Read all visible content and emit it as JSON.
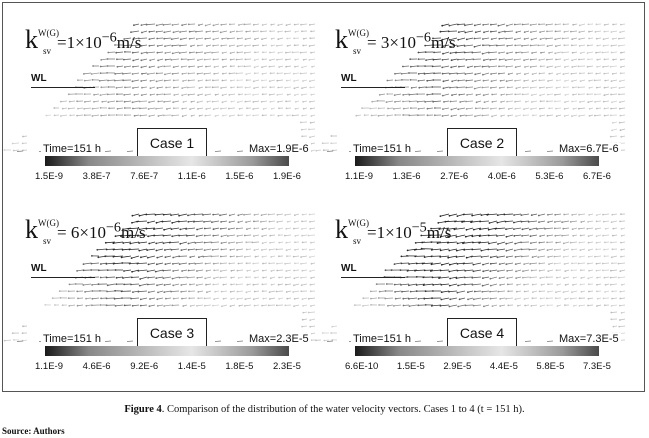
{
  "panels": [
    {
      "k_letter": "k",
      "k_sup": "W(G)",
      "k_sub": "sv",
      "k_value": "=1×10",
      "k_exp": "−6",
      "k_unit": "m/s",
      "wl": "WL",
      "time": "Time=151 h",
      "case": "Case 1",
      "max": "Max=1.9E-6",
      "ticks": [
        "1.5E-9",
        "3.8E-7",
        "7.6E-7",
        "1.1E-6",
        "1.5E-6",
        "1.9E-6"
      ],
      "density": 0.35
    },
    {
      "k_letter": "k",
      "k_sup": "W(G)",
      "k_sub": "sv",
      "k_value": "= 3×10",
      "k_exp": "−6",
      "k_unit": "m/s",
      "wl": "WL",
      "time": "Time=151 h",
      "case": "Case 2",
      "max": "Max=6.7E-6",
      "ticks": [
        "1.1E-9",
        "1.3E-6",
        "2.7E-6",
        "4.0E-6",
        "5.3E-6",
        "6.7E-6"
      ],
      "density": 0.5
    },
    {
      "k_letter": "k",
      "k_sup": "W(G)",
      "k_sub": "sv",
      "k_value": "= 6×10",
      "k_exp": "−6",
      "k_unit": "m/s",
      "wl": "WL",
      "time": "Time=151 h",
      "case": "Case 3",
      "max": "Max=2.3E-5",
      "ticks": [
        "1.1E-9",
        "4.6E-6",
        "9.2E-6",
        "1.4E-5",
        "1.8E-5",
        "2.3E-5"
      ],
      "density": 0.7
    },
    {
      "k_letter": "k",
      "k_sup": "W(G)",
      "k_sub": "sv",
      "k_value": "=1×10",
      "k_exp": "−5",
      "k_unit": "m/s",
      "wl": "WL",
      "time": "Time=151 h",
      "case": "Case 4",
      "max": "Max=7.3E-5",
      "ticks": [
        "6.6E-10",
        "1.5E-5",
        "2.9E-5",
        "4.4E-5",
        "5.8E-5",
        "7.3E-5"
      ],
      "density": 0.9
    }
  ],
  "caption": {
    "label": "Figure 4",
    "text": ". Comparison of the distribution of the water velocity vectors. Cases 1 to 4 (t = 151 h)."
  },
  "source": "Source: Authors"
}
